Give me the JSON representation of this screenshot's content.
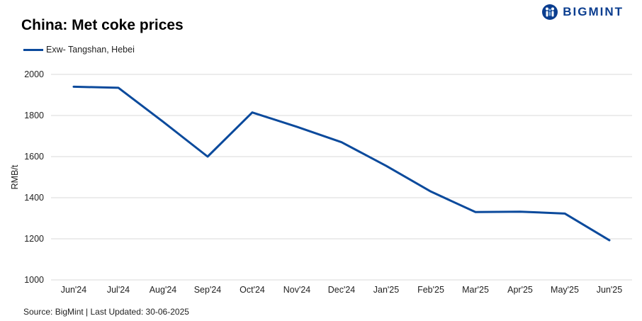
{
  "header": {
    "title": "China: Met coke prices",
    "brand": "BIGMINT"
  },
  "source": "Source: BigMint | Last Updated: 30-06-2025",
  "colors": {
    "series": "#0b4a9c",
    "grid": "#d9d9d9",
    "brand": "#0a3d8f"
  },
  "chart_data": {
    "type": "line",
    "title": "China: Met coke prices",
    "xlabel": "",
    "ylabel": "RMB/t",
    "ylim": [
      1000,
      2000
    ],
    "yticks": [
      1000,
      1200,
      1400,
      1600,
      1800,
      2000
    ],
    "grid": true,
    "legend": "top-left",
    "categories": [
      "Jun'24",
      "Jul'24",
      "Aug'24",
      "Sep'24",
      "Oct'24",
      "Nov'24",
      "Dec'24",
      "Jan'25",
      "Feb'25",
      "Mar'25",
      "Apr'25",
      "May'25",
      "Jun'25"
    ],
    "series": [
      {
        "name": "Exw- Tangshan, Hebei",
        "values": [
          1940,
          1935,
          1770,
          1600,
          1815,
          1745,
          1670,
          1555,
          1430,
          1330,
          1332,
          1323,
          1193
        ]
      }
    ]
  }
}
